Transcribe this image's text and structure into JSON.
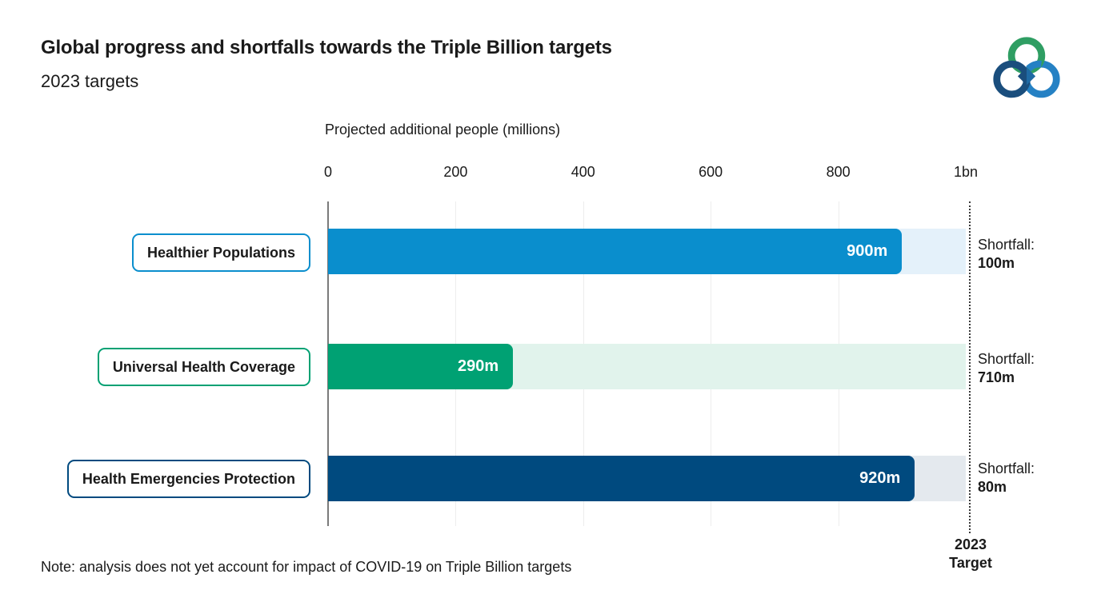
{
  "chart_data": {
    "type": "bar",
    "orientation": "horizontal",
    "title": "Global progress and shortfalls towards the Triple Billion targets",
    "subtitle": "2023 targets",
    "axis_title": "Projected additional people (millions)",
    "xlim": [
      0,
      1000
    ],
    "grid": true,
    "x_ticks": [
      {
        "value": 0,
        "label": "0"
      },
      {
        "value": 200,
        "label": "200"
      },
      {
        "value": 400,
        "label": "400"
      },
      {
        "value": 600,
        "label": "600"
      },
      {
        "value": 800,
        "label": "800"
      },
      {
        "value": 1000,
        "label": "1bn"
      }
    ],
    "shortfall_prefix": "Shortfall:",
    "target_line": {
      "value": 1000,
      "label_line1": "2023",
      "label_line2": "Target"
    },
    "rows": [
      {
        "category": "Healthier Populations",
        "value": 900,
        "value_label": "900m",
        "shortfall": 100,
        "shortfall_label": "100m",
        "bar_color": "#0a8ecd",
        "track_color": "#e4f1fa"
      },
      {
        "category": "Universal Health Coverage",
        "value": 290,
        "value_label": "290m",
        "shortfall": 710,
        "shortfall_label": "710m",
        "bar_color": "#00a173",
        "track_color": "#e1f3ec"
      },
      {
        "category": "Health Emergencies Protection",
        "value": 920,
        "value_label": "920m",
        "shortfall": 80,
        "shortfall_label": "80m",
        "bar_color": "#004a7f",
        "track_color": "#e4e9ee"
      }
    ],
    "note": "Note: analysis does not yet account for impact of COVID-19 on Triple Billion targets"
  },
  "logo": {
    "name": "triple-billion-logo",
    "green": "#2f9e63",
    "navy": "#1a4e7d",
    "blue": "#2581c4"
  },
  "colors": {
    "axis_line": "#7a7a7a",
    "gridline": "#ededed",
    "target_line": "#3a3a3a",
    "text": "#1a1a1a",
    "bar_value_text": "#ffffff"
  }
}
